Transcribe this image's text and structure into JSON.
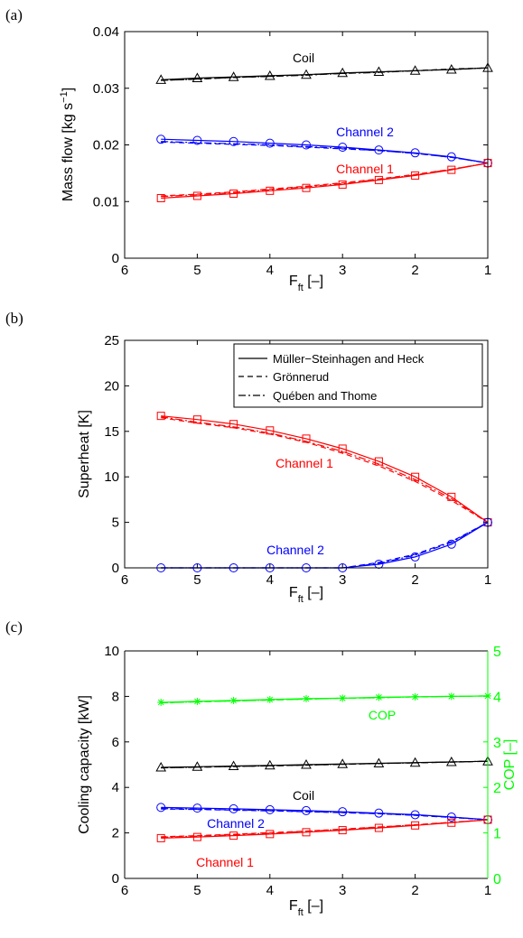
{
  "panels": [
    {
      "label": "(a)",
      "ylabel": "Mass flow [kg s",
      "ylabel_sup": "−1",
      "ylabel_end": "]"
    },
    {
      "label": "(b)",
      "ylabel": "Superheat [K]"
    },
    {
      "label": "(c)",
      "ylabel": "Cooling capacity [kW]",
      "y2label": "COP [–]"
    }
  ],
  "xlabel_main": "F",
  "xlabel_sub": "ft",
  "xlabel_unit": " [–]",
  "legend": [
    {
      "label": "Müller−Steinhagen and Heck",
      "style": "solid"
    },
    {
      "label": "Grönnerud",
      "style": "dashed"
    },
    {
      "label": "Quében and Thome",
      "style": "dashdot"
    }
  ],
  "colors": {
    "coil": "#000000",
    "channel1": "#ff0000",
    "channel2": "#0000ff",
    "cop": "#00ff00"
  },
  "chart_data": [
    {
      "type": "line",
      "panel": "(a)",
      "xlabel": "F_ft [–]",
      "ylabel": "Mass flow [kg s^-1]",
      "xlim": [
        6,
        1
      ],
      "ylim": [
        0,
        0.04
      ],
      "xticks": [
        6,
        5,
        4,
        3,
        2,
        1
      ],
      "yticks": [
        "0",
        "0.01",
        "0.02",
        "0.03",
        "0.04"
      ],
      "x": [
        5.5,
        5,
        4.5,
        4,
        3.5,
        3,
        2.5,
        2,
        1.5,
        1
      ],
      "series": [
        {
          "name": "Coil",
          "color": "#000000",
          "marker": "triangle",
          "solid": [
            0.0315,
            0.0318,
            0.032,
            0.0322,
            0.0324,
            0.0327,
            0.0329,
            0.0331,
            0.0333,
            0.0336
          ],
          "dashed": [
            0.0314,
            0.0316,
            0.0319,
            0.0321,
            0.0324,
            0.0326,
            0.0329,
            0.0331,
            0.0334,
            0.0336
          ],
          "dashdot": [
            0.0314,
            0.0316,
            0.0319,
            0.0321,
            0.0323,
            0.0326,
            0.0328,
            0.0331,
            0.0333,
            0.0336
          ]
        },
        {
          "name": "Channel 2",
          "color": "#0000ff",
          "marker": "circle",
          "solid": [
            0.021,
            0.0208,
            0.0206,
            0.0203,
            0.02,
            0.0196,
            0.0191,
            0.0186,
            0.0179,
            0.0168
          ],
          "dashed": [
            0.0205,
            0.0203,
            0.0201,
            0.0199,
            0.0196,
            0.0193,
            0.019,
            0.0185,
            0.0178,
            0.0168
          ],
          "dashdot": [
            0.0206,
            0.0204,
            0.0202,
            0.02,
            0.0197,
            0.0194,
            0.019,
            0.0185,
            0.0178,
            0.0168
          ]
        },
        {
          "name": "Channel 1",
          "color": "#ff0000",
          "marker": "square",
          "solid": [
            0.0106,
            0.011,
            0.0114,
            0.0119,
            0.0124,
            0.013,
            0.0138,
            0.0146,
            0.0156,
            0.0168
          ],
          "dashed": [
            0.011,
            0.0113,
            0.0117,
            0.0122,
            0.0127,
            0.0133,
            0.014,
            0.0148,
            0.0157,
            0.0168
          ],
          "dashdot": [
            0.0109,
            0.0112,
            0.0116,
            0.0121,
            0.0126,
            0.0132,
            0.0139,
            0.0147,
            0.0157,
            0.0168
          ]
        }
      ],
      "annotations": [
        "Coil",
        "Channel 2",
        "Channel 1"
      ]
    },
    {
      "type": "line",
      "panel": "(b)",
      "xlabel": "F_ft [–]",
      "ylabel": "Superheat [K]",
      "xlim": [
        6,
        1
      ],
      "ylim": [
        0,
        25
      ],
      "xticks": [
        6,
        5,
        4,
        3,
        2,
        1
      ],
      "yticks": [
        "0",
        "5",
        "10",
        "15",
        "20",
        "25"
      ],
      "legend_position": "top-right",
      "x": [
        5.5,
        5,
        4.5,
        4,
        3.5,
        3,
        2.5,
        2,
        1.5,
        1
      ],
      "series": [
        {
          "name": "Channel 1",
          "color": "#ff0000",
          "marker": "square",
          "solid": [
            16.7,
            16.3,
            15.8,
            15.1,
            14.2,
            13.1,
            11.7,
            10.0,
            7.8,
            5.0
          ],
          "dashed": [
            16.5,
            15.9,
            15.4,
            14.7,
            13.8,
            12.6,
            11.2,
            9.5,
            7.4,
            5.0
          ],
          "dashdot": [
            16.6,
            16.0,
            15.5,
            14.8,
            13.9,
            12.8,
            11.4,
            9.7,
            7.6,
            5.0
          ]
        },
        {
          "name": "Channel 2",
          "color": "#0000ff",
          "marker": "circle",
          "solid": [
            0,
            0,
            0,
            0,
            0,
            0,
            0.4,
            1.2,
            2.6,
            5.0
          ],
          "dashed": [
            0,
            0,
            0,
            0,
            0,
            0,
            0.6,
            1.5,
            2.9,
            5.0
          ],
          "dashdot": [
            0,
            0,
            0,
            0,
            0,
            0,
            0.5,
            1.4,
            2.8,
            5.0
          ]
        }
      ],
      "annotations": [
        "Channel 1",
        "Channel 2"
      ]
    },
    {
      "type": "line",
      "panel": "(c)",
      "xlabel": "F_ft [–]",
      "ylabel": "Cooling capacity [kW]",
      "y2label": "COP [–]",
      "xlim": [
        6,
        1
      ],
      "ylim": [
        0,
        10
      ],
      "y2lim": [
        0,
        5
      ],
      "xticks": [
        6,
        5,
        4,
        3,
        2,
        1
      ],
      "yticks": [
        "0",
        "2",
        "4",
        "6",
        "8",
        "10"
      ],
      "y2ticks": [
        "0",
        "1",
        "2",
        "3",
        "4",
        "5"
      ],
      "x": [
        5.5,
        5,
        4.5,
        4,
        3.5,
        3,
        2.5,
        2,
        1.5,
        1
      ],
      "series": [
        {
          "name": "COP",
          "color": "#00ff00",
          "marker": "star",
          "axis": "right",
          "solid": [
            3.87,
            3.89,
            3.91,
            3.93,
            3.95,
            3.96,
            3.98,
            3.99,
            4.0,
            4.01
          ],
          "dashed": [
            3.86,
            3.88,
            3.9,
            3.92,
            3.94,
            3.96,
            3.97,
            3.99,
            4.0,
            4.01
          ],
          "dashdot": [
            3.86,
            3.88,
            3.9,
            3.92,
            3.94,
            3.96,
            3.97,
            3.99,
            4.0,
            4.01
          ]
        },
        {
          "name": "Coil",
          "color": "#000000",
          "marker": "triangle",
          "solid": [
            4.88,
            4.91,
            4.94,
            4.97,
            5.0,
            5.03,
            5.06,
            5.09,
            5.12,
            5.15
          ],
          "dashed": [
            4.86,
            4.89,
            4.92,
            4.95,
            4.98,
            5.01,
            5.05,
            5.08,
            5.11,
            5.15
          ],
          "dashdot": [
            4.86,
            4.89,
            4.92,
            4.95,
            4.98,
            5.02,
            5.05,
            5.08,
            5.12,
            5.15
          ]
        },
        {
          "name": "Channel 2",
          "color": "#0000ff",
          "marker": "circle",
          "solid": [
            3.12,
            3.09,
            3.06,
            3.02,
            2.98,
            2.93,
            2.87,
            2.8,
            2.7,
            2.58
          ],
          "dashed": [
            3.05,
            3.03,
            3.0,
            2.97,
            2.93,
            2.89,
            2.84,
            2.77,
            2.68,
            2.58
          ],
          "dashdot": [
            3.07,
            3.04,
            3.01,
            2.98,
            2.94,
            2.9,
            2.85,
            2.78,
            2.69,
            2.58
          ]
        },
        {
          "name": "Channel 1",
          "color": "#ff0000",
          "marker": "square",
          "solid": [
            1.77,
            1.82,
            1.88,
            1.95,
            2.03,
            2.12,
            2.22,
            2.33,
            2.45,
            2.58
          ],
          "dashed": [
            1.83,
            1.88,
            1.94,
            2.01,
            2.08,
            2.17,
            2.26,
            2.36,
            2.47,
            2.58
          ],
          "dashdot": [
            1.81,
            1.86,
            1.92,
            1.99,
            2.07,
            2.15,
            2.25,
            2.35,
            2.46,
            2.58
          ]
        }
      ],
      "annotations": [
        "COP",
        "Coil",
        "Channel 2",
        "Channel 1"
      ]
    }
  ]
}
